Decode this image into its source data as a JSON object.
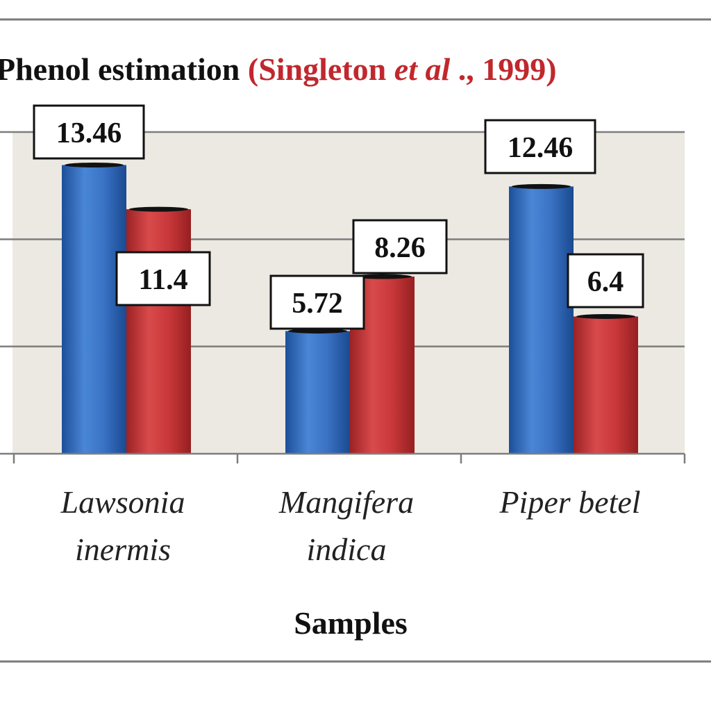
{
  "chart_data": {
    "type": "bar",
    "title": "Phenol estimation",
    "citation_prefix": "(Singleton ",
    "citation_italic": "et al",
    "citation_suffix": "., 1999)",
    "xlabel": "Samples",
    "ylabel": "",
    "categories": [
      [
        "Lawsonia",
        "inermis"
      ],
      [
        "Mangifera",
        "indica"
      ],
      [
        "Piper betel"
      ]
    ],
    "series": [
      {
        "color": "#3a72c4",
        "values": [
          13.46,
          5.72,
          12.46
        ]
      },
      {
        "color": "#c9383a",
        "values": [
          11.4,
          8.26,
          6.4
        ]
      }
    ],
    "data_labels": [
      [
        "13.46",
        "5.72",
        "12.46"
      ],
      [
        "11.4",
        "8.26",
        "6.4"
      ]
    ],
    "ylim": [
      0,
      15
    ],
    "grid": true,
    "plot_background": "#ece9e2",
    "citation_color": "#c0282d"
  }
}
